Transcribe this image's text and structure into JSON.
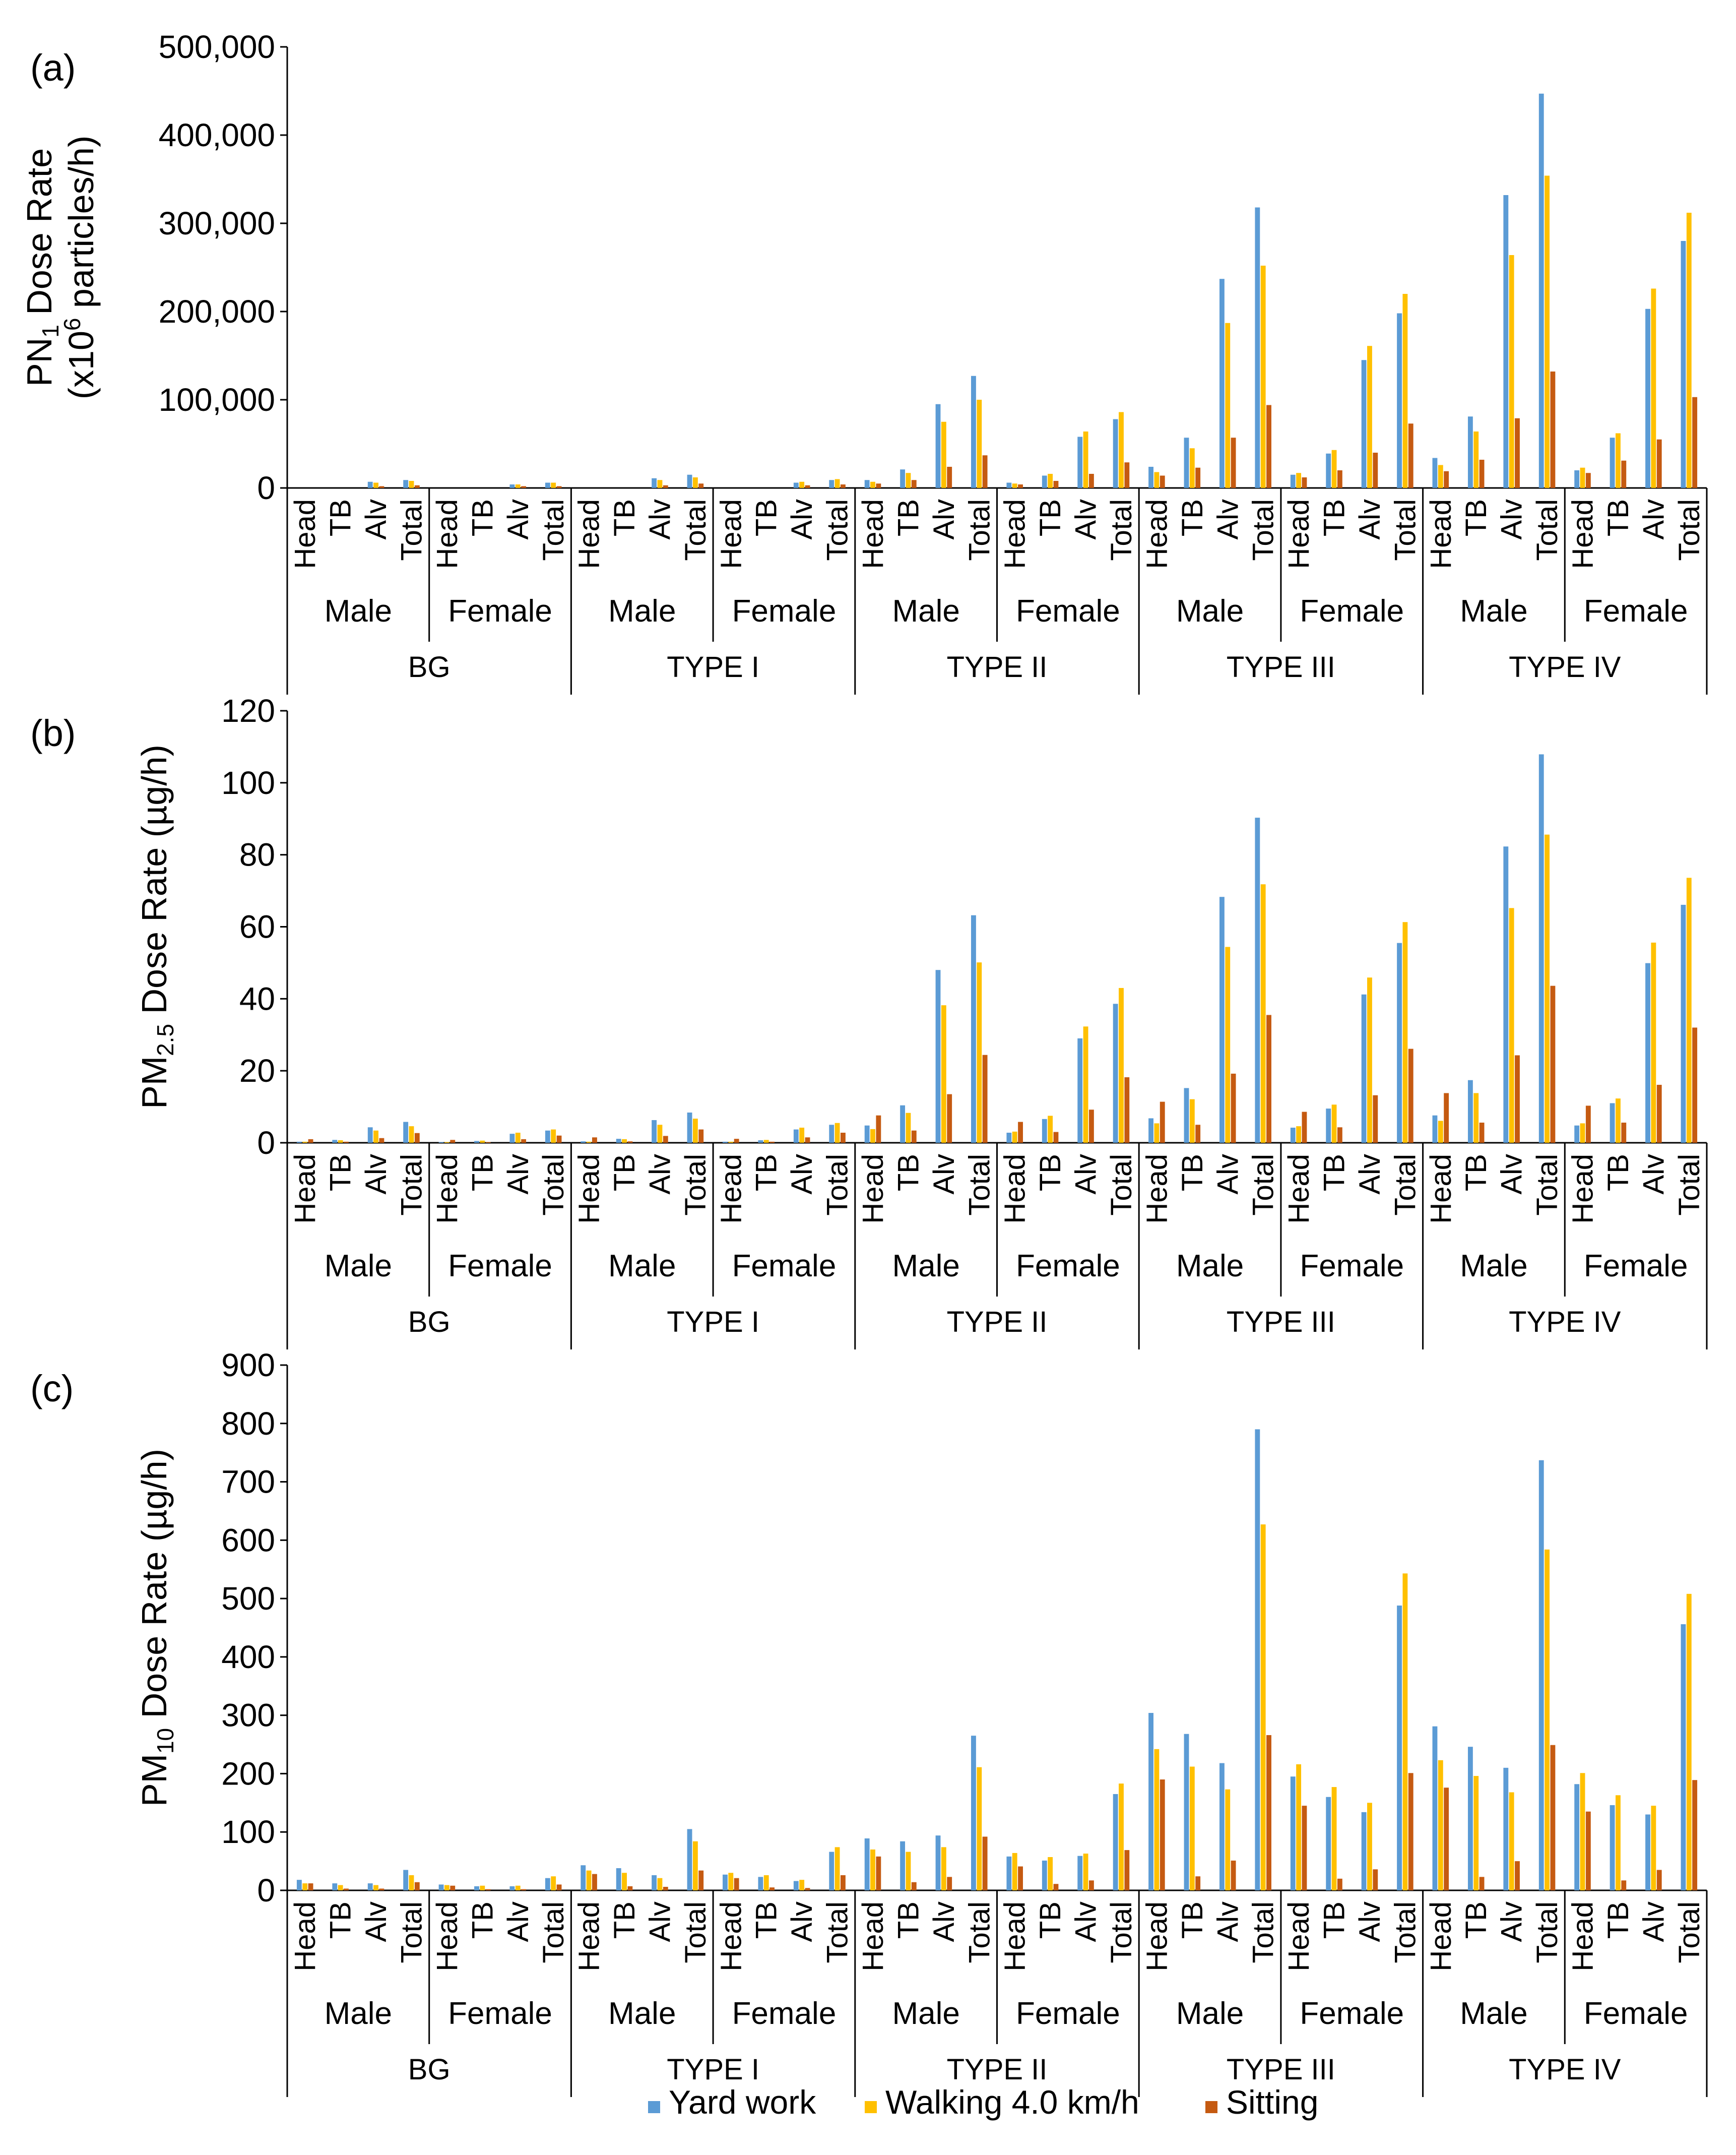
{
  "legend": {
    "series": [
      {
        "name": "Yard work",
        "color": "#5B9BD5"
      },
      {
        "name": "Walking 4.0 km/h",
        "color": "#FFC000"
      },
      {
        "name": "Sitting",
        "color": "#C55A11"
      }
    ]
  },
  "groups": [
    "BG",
    "TYPE I",
    "TYPE II",
    "TYPE III",
    "TYPE IV"
  ],
  "genders": [
    "Male",
    "Female"
  ],
  "regions": [
    "Head",
    "TB",
    "Alv",
    "Total"
  ],
  "chart_data": [
    {
      "type": "bar",
      "panel_label": "(a)",
      "ylabel_main": "PN",
      "ylabel_sub": "1",
      "ylabel_rest": " Dose Rate",
      "ylabel_line2_pre": "(x10",
      "ylabel_line2_sup": "6",
      "ylabel_line2_post": " particles/h)",
      "ylim": [
        0,
        500000
      ],
      "yticks": [
        0,
        100000,
        200000,
        300000,
        400000,
        500000
      ],
      "ytick_labels": [
        "0",
        "100,000",
        "200,000",
        "300,000",
        "400,000",
        "500,000"
      ],
      "series": [
        {
          "name": "Yard work",
          "values": [
            0,
            0,
            7000,
            9000,
            0,
            0,
            4000,
            6000,
            0,
            0,
            11000,
            15000,
            0,
            0,
            6000,
            9000,
            9000,
            21000,
            95000,
            127000,
            6000,
            14000,
            58000,
            78000,
            24000,
            57000,
            237000,
            318000,
            15000,
            39000,
            145000,
            198000,
            34000,
            81000,
            332000,
            447000,
            20000,
            57000,
            203000,
            280000
          ]
        },
        {
          "name": "Walking 4.0 km/h",
          "values": [
            0,
            0,
            6000,
            8000,
            0,
            0,
            4000,
            6000,
            0,
            0,
            9000,
            12000,
            0,
            0,
            7000,
            10000,
            7000,
            17000,
            75000,
            100000,
            5000,
            16000,
            64000,
            86000,
            18000,
            45000,
            187000,
            252000,
            17000,
            43000,
            161000,
            220000,
            26000,
            64000,
            264000,
            354000,
            23000,
            62000,
            226000,
            312000
          ]
        },
        {
          "name": "Sitting",
          "values": [
            0,
            0,
            2000,
            3000,
            0,
            0,
            2000,
            2000,
            0,
            0,
            3000,
            5000,
            0,
            0,
            3000,
            4000,
            5000,
            9000,
            24000,
            37000,
            4000,
            8000,
            16000,
            29000,
            14000,
            23000,
            57000,
            94000,
            12000,
            20000,
            40000,
            73000,
            19000,
            32000,
            79000,
            132000,
            17000,
            31000,
            55000,
            103000
          ]
        }
      ]
    },
    {
      "type": "bar",
      "panel_label": "(b)",
      "ylabel_main": "PM",
      "ylabel_sub": "2.5",
      "ylabel_rest": " Dose Rate (µg/h)",
      "ylim": [
        0,
        120
      ],
      "yticks": [
        0,
        20,
        40,
        60,
        80,
        100,
        120
      ],
      "ytick_labels": [
        "0",
        "20",
        "40",
        "60",
        "80",
        "100",
        "120"
      ],
      "series": [
        {
          "name": "Yard work",
          "values": [
            0.3,
            0.8,
            4.3,
            5.8,
            0.2,
            0.5,
            2.5,
            3.4,
            0.4,
            1.1,
            6.3,
            8.4,
            0.3,
            0.7,
            3.7,
            5.0,
            4.8,
            10.4,
            48.0,
            63.2,
            2.8,
            6.6,
            29.0,
            38.6,
            6.8,
            15.2,
            68.3,
            90.3,
            4.2,
            9.5,
            41.2,
            55.5,
            7.6,
            17.4,
            82.3,
            107.9,
            4.8,
            11.0,
            49.9,
            66.1
          ]
        },
        {
          "name": "Walking 4.0 km/h",
          "values": [
            0.3,
            0.7,
            3.4,
            4.6,
            0.2,
            0.6,
            2.8,
            3.7,
            0.3,
            1.0,
            5.0,
            6.7,
            0.3,
            0.8,
            4.2,
            5.5,
            3.8,
            8.3,
            38.2,
            50.1,
            3.1,
            7.5,
            32.3,
            43.0,
            5.4,
            12.1,
            54.4,
            71.8,
            4.6,
            10.6,
            45.9,
            61.3,
            6.1,
            13.8,
            65.2,
            85.6,
            5.4,
            12.3,
            55.6,
            73.6
          ]
        },
        {
          "name": "Sitting",
          "values": [
            1.0,
            0.3,
            1.3,
            2.7,
            0.8,
            0.2,
            1.0,
            2.0,
            1.5,
            0.4,
            1.9,
            3.7,
            1.1,
            0.3,
            1.5,
            2.8,
            7.6,
            3.4,
            13.5,
            24.4,
            5.8,
            3.0,
            9.2,
            18.2,
            11.4,
            5.0,
            19.2,
            35.5,
            8.6,
            4.3,
            13.2,
            26.1,
            13.8,
            5.6,
            24.3,
            43.6,
            10.3,
            5.6,
            16.1,
            32.0
          ]
        }
      ]
    },
    {
      "type": "bar",
      "panel_label": "(c)",
      "ylabel_main": "PM",
      "ylabel_sub": "10",
      "ylabel_rest": " Dose Rate (µg/h)",
      "ylim": [
        0,
        900
      ],
      "yticks": [
        0,
        100,
        200,
        300,
        400,
        500,
        600,
        700,
        800,
        900
      ],
      "ytick_labels": [
        "0",
        "100",
        "200",
        "300",
        "400",
        "500",
        "600",
        "700",
        "800",
        "900"
      ],
      "series": [
        {
          "name": "Yard work",
          "values": [
            18,
            12,
            12,
            35,
            10,
            7,
            7,
            21,
            43,
            38,
            26,
            105,
            27,
            23,
            16,
            66,
            89,
            84,
            94,
            265,
            58,
            51,
            59,
            165,
            304,
            268,
            218,
            790,
            195,
            160,
            134,
            488,
            281,
            246,
            210,
            737,
            182,
            146,
            130,
            456
          ]
        },
        {
          "name": "Walking 4.0 km/h",
          "values": [
            12,
            9,
            9,
            26,
            9,
            8,
            8,
            24,
            34,
            30,
            21,
            84,
            30,
            26,
            18,
            74,
            70,
            66,
            74,
            211,
            64,
            57,
            63,
            183,
            242,
            212,
            173,
            627,
            216,
            177,
            150,
            543,
            223,
            196,
            168,
            584,
            201,
            163,
            145,
            508
          ]
        },
        {
          "name": "Sitting",
          "values": [
            12,
            3,
            3,
            14,
            8,
            2,
            2,
            10,
            28,
            7,
            6,
            34,
            21,
            5,
            4,
            26,
            58,
            14,
            23,
            92,
            41,
            11,
            17,
            69,
            190,
            24,
            51,
            266,
            145,
            20,
            36,
            201,
            176,
            23,
            50,
            249,
            135,
            17,
            35,
            189
          ]
        }
      ]
    }
  ]
}
